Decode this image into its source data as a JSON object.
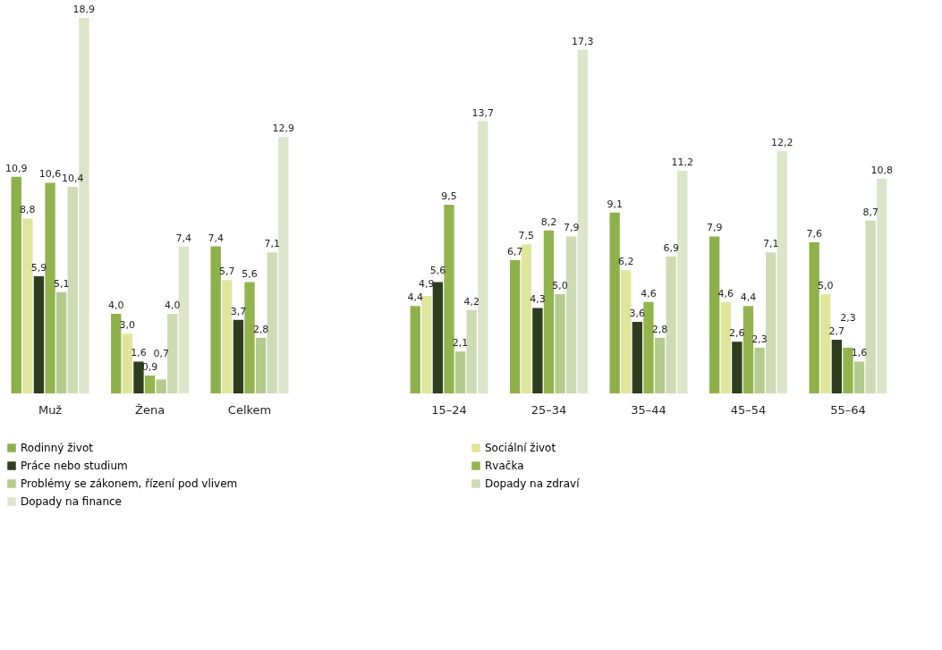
{
  "chart_data": {
    "type": "bar",
    "categories": [
      "Muž",
      "Žena",
      "Celkem",
      null,
      "15–24",
      "25–34",
      "35–44",
      "45–54",
      "55–64"
    ],
    "series": [
      {
        "name": "Rodinný život",
        "color": "#8eb04b",
        "values": [
          10.9,
          4.0,
          7.4,
          null,
          4.4,
          6.7,
          9.1,
          7.9,
          7.6
        ],
        "value_labels": [
          "10,9",
          "4,0",
          "7,4",
          null,
          "4,4",
          "6,7",
          "9,1",
          "7,9",
          "7,6"
        ]
      },
      {
        "name": "Sociální život",
        "color": "#dfe69c",
        "values": [
          8.8,
          3.0,
          5.7,
          null,
          4.9,
          7.5,
          6.2,
          4.6,
          5.0
        ],
        "value_labels": [
          "8,8",
          "3,0",
          "5,7",
          null,
          "4,9",
          "7,5",
          "6,2",
          "4,6",
          "5,0"
        ]
      },
      {
        "name": "Práce nebo studium",
        "color": "#2e3d1e",
        "values": [
          5.9,
          1.6,
          3.7,
          null,
          5.6,
          4.3,
          3.6,
          2.6,
          2.7
        ],
        "value_labels": [
          "5,9",
          "1,6",
          "3,7",
          null,
          "5,6",
          "4,3",
          "3,6",
          "2,6",
          "2,7"
        ]
      },
      {
        "name": "Rvačka",
        "color": "#93b34f",
        "values": [
          10.6,
          0.9,
          5.6,
          null,
          9.5,
          8.2,
          4.6,
          4.4,
          2.3
        ],
        "value_labels": [
          "10,6",
          "0,9",
          "5,6",
          null,
          "9,5",
          "8,2",
          "4,6",
          "4,4",
          "2,3"
        ]
      },
      {
        "name": "Problémy se zákonem, řízení pod vlivem",
        "color": "#b4cb8d",
        "values": [
          5.1,
          0.7,
          2.8,
          null,
          2.1,
          5.0,
          2.8,
          2.3,
          1.6
        ],
        "value_labels": [
          "5,1",
          "0,7",
          "2,8",
          null,
          "2,1",
          "5,0",
          "2,8",
          "2,3",
          "1,6"
        ]
      },
      {
        "name": "Dopady na zdraví",
        "color": "#cedbb4",
        "values": [
          10.4,
          4.0,
          7.1,
          null,
          4.2,
          7.9,
          6.9,
          7.1,
          8.7
        ],
        "value_labels": [
          "10,4",
          "4,0",
          "7,1",
          null,
          "4,2",
          "7,9",
          "6,9",
          "7,1",
          "8,7"
        ]
      },
      {
        "name": "Dopady na finance",
        "color": "#dce5c9",
        "values": [
          18.9,
          7.4,
          12.9,
          null,
          13.7,
          17.3,
          11.2,
          12.2,
          10.8
        ],
        "value_labels": [
          "18,9",
          "7,4",
          "12,9",
          null,
          "13,7",
          "17,3",
          "11,2",
          "12,2",
          "10,8"
        ]
      }
    ],
    "tick_labels": "x",
    "grid": false,
    "legend": "bottom"
  }
}
